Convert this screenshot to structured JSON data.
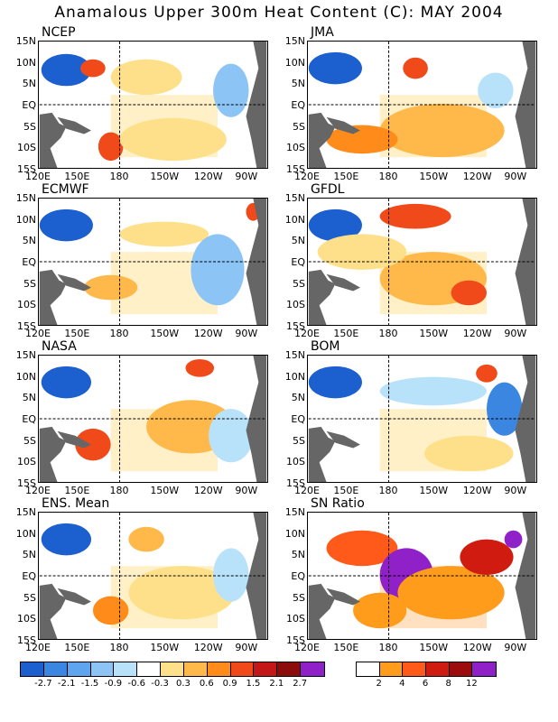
{
  "title": "Anamalous Upper 300m Heat Content (C): MAY 2004",
  "y_ticks": [
    "15N",
    "10N",
    "5N",
    "EQ",
    "5S",
    "10S",
    "15S"
  ],
  "x_ticks": [
    "120E",
    "150E",
    "180",
    "150W",
    "120W",
    "90W"
  ],
  "panels": [
    {
      "name": "NCEP"
    },
    {
      "name": "JMA"
    },
    {
      "name": "ECMWF"
    },
    {
      "name": "GFDL"
    },
    {
      "name": "NASA"
    },
    {
      "name": "BOM"
    },
    {
      "name": "ENS. Mean"
    },
    {
      "name": "SN Ratio"
    }
  ],
  "colorbar_anomaly": {
    "colors": [
      "#1c60d0",
      "#3a86e0",
      "#5ea4ee",
      "#8cc4f6",
      "#b8e2fa",
      "#ffffff",
      "#ffe08a",
      "#ffb84a",
      "#ff8c1a",
      "#f04a1a",
      "#c41818",
      "#8c0c0c",
      "#9020c8"
    ],
    "labels": [
      "-2.7",
      "-2.1",
      "-1.5",
      "-0.9",
      "-0.6",
      "-0.3",
      "0.3",
      "0.6",
      "0.9",
      "1.5",
      "2.1",
      "2.7"
    ]
  },
  "colorbar_sn": {
    "colors": [
      "#ffffff",
      "#ff9c1c",
      "#ff5a1a",
      "#d01c10",
      "#9c0c0c",
      "#9020c8"
    ],
    "labels": [
      "2",
      "4",
      "6",
      "8",
      "12"
    ]
  },
  "land_color": "#666666"
}
